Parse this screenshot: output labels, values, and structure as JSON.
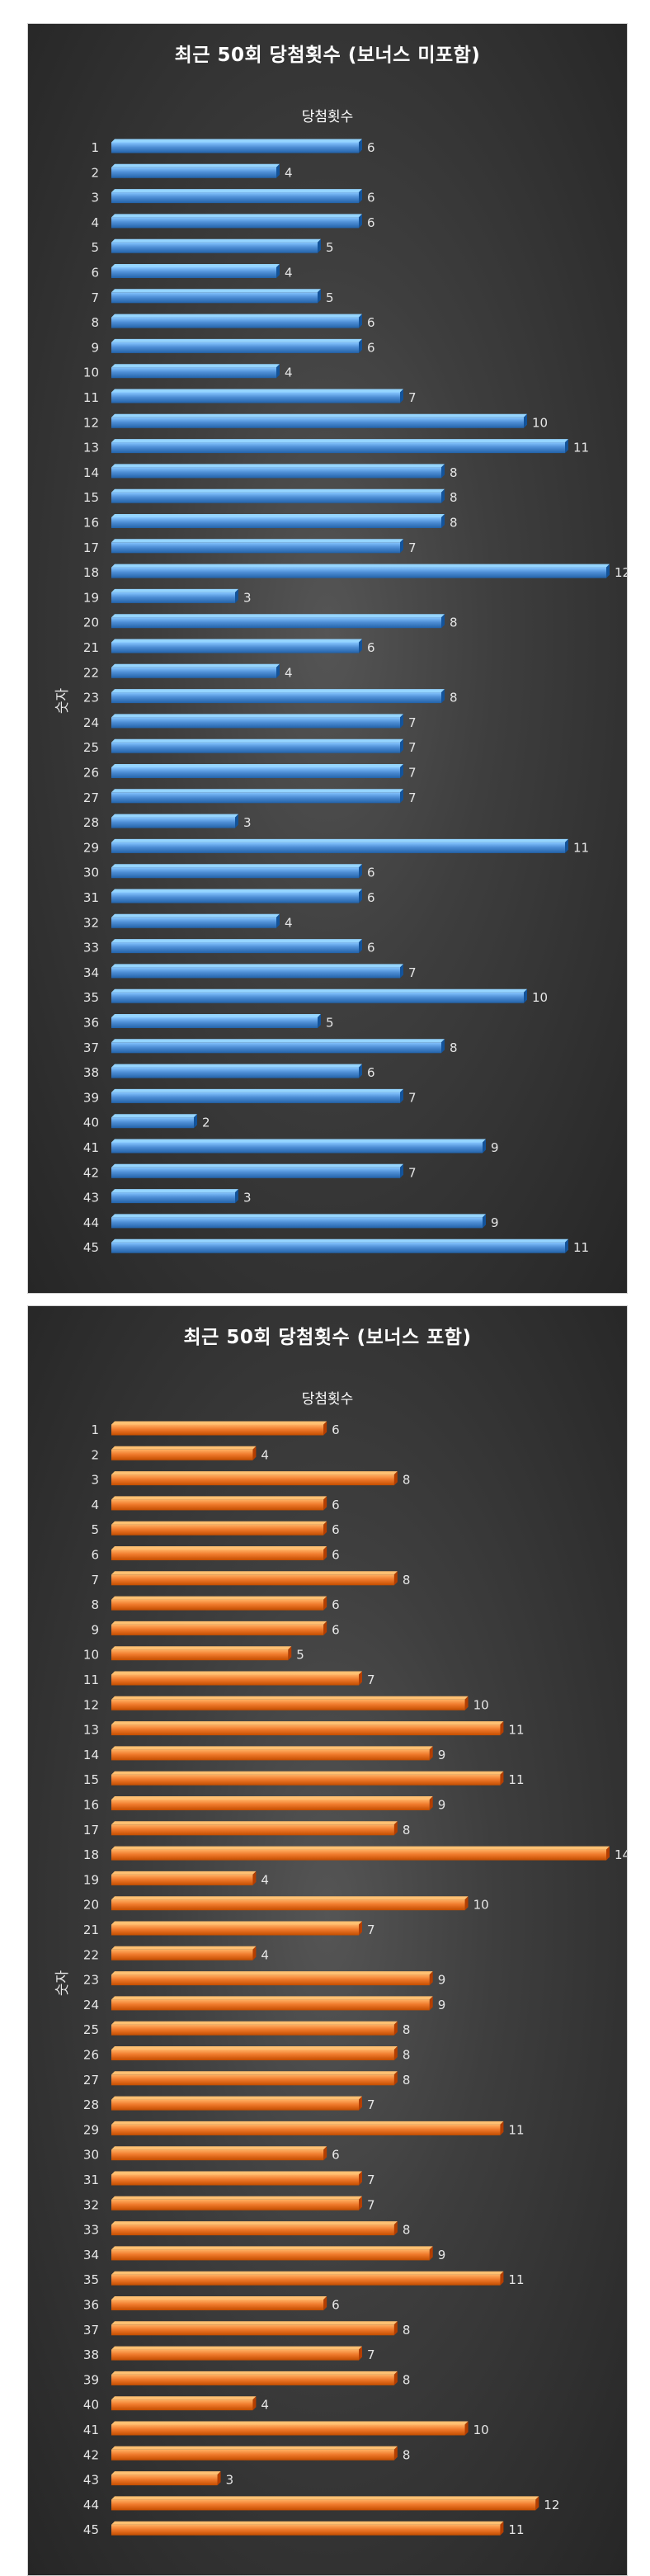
{
  "chart_data": [
    {
      "type": "bar",
      "orientation": "horizontal",
      "title": "최근 50회 당첨횟수 (보너스 미포함)",
      "ylabel": "숫자",
      "categories": [
        "1",
        "2",
        "3",
        "4",
        "5",
        "6",
        "7",
        "8",
        "9",
        "10",
        "11",
        "12",
        "13",
        "14",
        "15",
        "16",
        "17",
        "18",
        "19",
        "20",
        "21",
        "22",
        "23",
        "24",
        "25",
        "26",
        "27",
        "28",
        "29",
        "30",
        "31",
        "32",
        "33",
        "34",
        "35",
        "36",
        "37",
        "38",
        "39",
        "40",
        "41",
        "42",
        "43",
        "44",
        "45"
      ],
      "series": [
        {
          "name": "당첨횟수",
          "color": "#4f8fd6",
          "values": [
            6,
            4,
            6,
            6,
            5,
            4,
            5,
            6,
            6,
            4,
            7,
            10,
            11,
            8,
            8,
            8,
            7,
            12,
            3,
            8,
            6,
            4,
            8,
            7,
            7,
            7,
            7,
            3,
            11,
            6,
            6,
            4,
            6,
            7,
            10,
            5,
            8,
            6,
            7,
            2,
            9,
            7,
            3,
            9,
            11
          ]
        }
      ],
      "xlim": [
        0,
        12
      ],
      "data_labels": true,
      "grid": false
    },
    {
      "type": "bar",
      "orientation": "horizontal",
      "title": "최근 50회 당첨횟수 (보너스 포함)",
      "ylabel": "숫자",
      "categories": [
        "1",
        "2",
        "3",
        "4",
        "5",
        "6",
        "7",
        "8",
        "9",
        "10",
        "11",
        "12",
        "13",
        "14",
        "15",
        "16",
        "17",
        "18",
        "19",
        "20",
        "21",
        "22",
        "23",
        "24",
        "25",
        "26",
        "27",
        "28",
        "29",
        "30",
        "31",
        "32",
        "33",
        "34",
        "35",
        "36",
        "37",
        "38",
        "39",
        "40",
        "41",
        "42",
        "43",
        "44",
        "45"
      ],
      "series": [
        {
          "name": "당첨횟수",
          "color": "#f07a2c",
          "values": [
            6,
            4,
            8,
            6,
            6,
            6,
            8,
            6,
            6,
            5,
            7,
            10,
            11,
            9,
            11,
            9,
            8,
            14,
            4,
            10,
            7,
            4,
            9,
            9,
            8,
            8,
            8,
            7,
            11,
            6,
            7,
            7,
            8,
            9,
            11,
            6,
            8,
            7,
            8,
            4,
            10,
            8,
            3,
            12,
            11
          ]
        }
      ],
      "xlim": [
        0,
        14
      ],
      "data_labels": true,
      "grid": false
    }
  ]
}
